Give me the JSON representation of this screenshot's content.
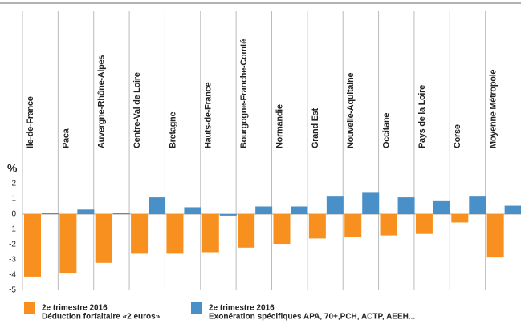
{
  "chart_data": {
    "type": "bar",
    "y_label": "%",
    "categories": [
      "Ile-de-France",
      "Paca",
      "Auvergne-Rhône-Alpes",
      "Centre-Val de Loire",
      "Bretagne",
      "Hauts-de-France",
      "Bourgogne-Franche-Comté",
      "Normandie",
      "Grand Est",
      "Nouvelle-Aquitaine",
      "Occitane",
      "Pays de la Loire",
      "Corse",
      "Moyenne Métropole"
    ],
    "series": [
      {
        "period": "2e trimestre 2016",
        "name": "Déduction forfaitaire «2 euros»",
        "color": "#f7901e",
        "values": [
          -4.1,
          -3.9,
          -3.2,
          -2.6,
          -2.6,
          -2.5,
          -2.2,
          -1.95,
          -1.6,
          -1.5,
          -1.4,
          -1.3,
          -0.55,
          -2.85
        ]
      },
      {
        "period": "2e trimestre 2016",
        "name": "Exonération spécifiques APA, 70+,PCH, ACTP, AEEH...",
        "color": "#4a90c8",
        "values": [
          0.1,
          0.3,
          0.1,
          1.1,
          0.45,
          -0.1,
          0.5,
          0.5,
          1.15,
          1.4,
          1.1,
          0.85,
          1.15,
          0.55
        ]
      }
    ],
    "ylim": [
      -5,
      2
    ],
    "yticks": [
      -5,
      -4,
      -3,
      -2,
      -1,
      0,
      1,
      2
    ]
  }
}
